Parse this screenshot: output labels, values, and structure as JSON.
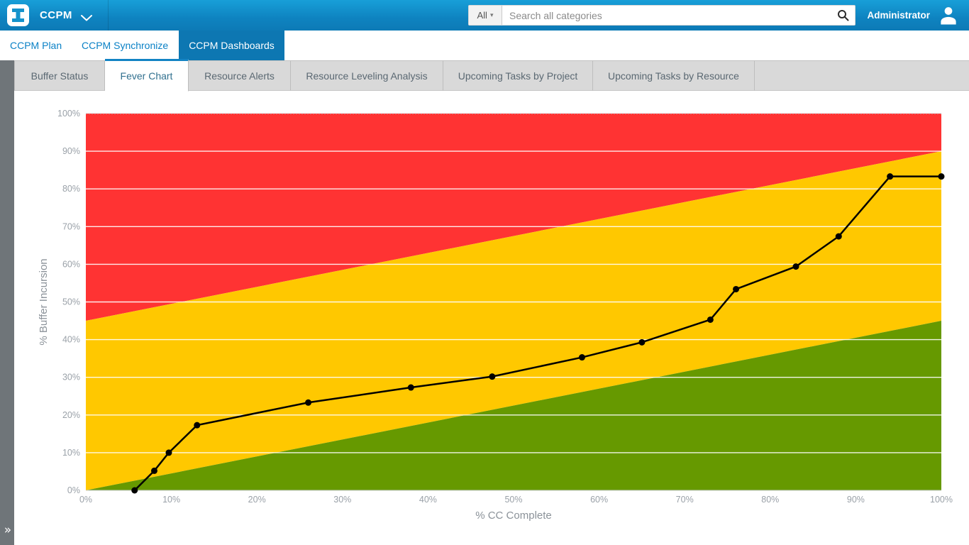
{
  "header": {
    "app_name": "CCPM",
    "user": "Administrator",
    "search": {
      "filter_label": "All",
      "caret": "▾",
      "placeholder": "Search all categories"
    }
  },
  "menu": {
    "items": [
      {
        "label": "CCPM Plan",
        "active": false
      },
      {
        "label": "CCPM Synchronize",
        "active": false
      },
      {
        "label": "CCPM Dashboards",
        "active": true
      }
    ]
  },
  "tabs": [
    {
      "label": "Buffer Status",
      "active": false
    },
    {
      "label": "Fever Chart",
      "active": true
    },
    {
      "label": "Resource Alerts",
      "active": false
    },
    {
      "label": "Resource Leveling Analysis",
      "active": false
    },
    {
      "label": "Upcoming Tasks by Project",
      "active": false
    },
    {
      "label": "Upcoming Tasks by Resource",
      "active": false
    }
  ],
  "sidebar": {
    "expand_icon": "»"
  },
  "colors": {
    "topbar_blue": "#0e83c0",
    "active_tab_blue": "#0d77b2",
    "tab_accent_blue": "#1283c4",
    "zone_red": "#ff3333",
    "zone_yellow": "#ffc800",
    "zone_green": "#669900",
    "series_black": "#000000"
  },
  "chart_data": {
    "type": "line",
    "xlabel": "% CC Complete",
    "ylabel": "% Buffer Incursion",
    "xlim": [
      0,
      100
    ],
    "ylim": [
      0,
      100
    ],
    "grid": true,
    "x_tick_labels": [
      "0%",
      "10%",
      "20%",
      "30%",
      "40%",
      "50%",
      "60%",
      "70%",
      "80%",
      "90%",
      "100%"
    ],
    "y_tick_labels": [
      "0%",
      "10%",
      "20%",
      "30%",
      "40%",
      "50%",
      "60%",
      "70%",
      "80%",
      "90%",
      "100%"
    ],
    "zones": {
      "green": {
        "color": "#669900",
        "upper_boundary": {
          "x": [
            0,
            100
          ],
          "y": [
            0,
            45
          ]
        }
      },
      "yellow": {
        "color": "#ffc800",
        "note": "between green upper boundary and red lower boundary"
      },
      "red": {
        "color": "#ff3333",
        "lower_boundary": {
          "x": [
            0,
            100
          ],
          "y": [
            45,
            90
          ]
        }
      }
    },
    "series": [
      {
        "name": "Buffer Incursion",
        "color": "#000000",
        "marker": "circle",
        "points": [
          [
            5.7,
            0
          ],
          [
            8,
            5.2
          ],
          [
            9.7,
            10
          ],
          [
            13,
            17.3
          ],
          [
            26,
            23.3
          ],
          [
            38,
            27.3
          ],
          [
            47.5,
            30.2
          ],
          [
            58,
            35.3
          ],
          [
            65,
            39.3
          ],
          [
            73,
            45.3
          ],
          [
            76,
            53.4
          ],
          [
            83,
            59.4
          ],
          [
            88,
            67.4
          ],
          [
            94,
            83.3
          ],
          [
            100,
            83.3
          ]
        ]
      }
    ]
  }
}
